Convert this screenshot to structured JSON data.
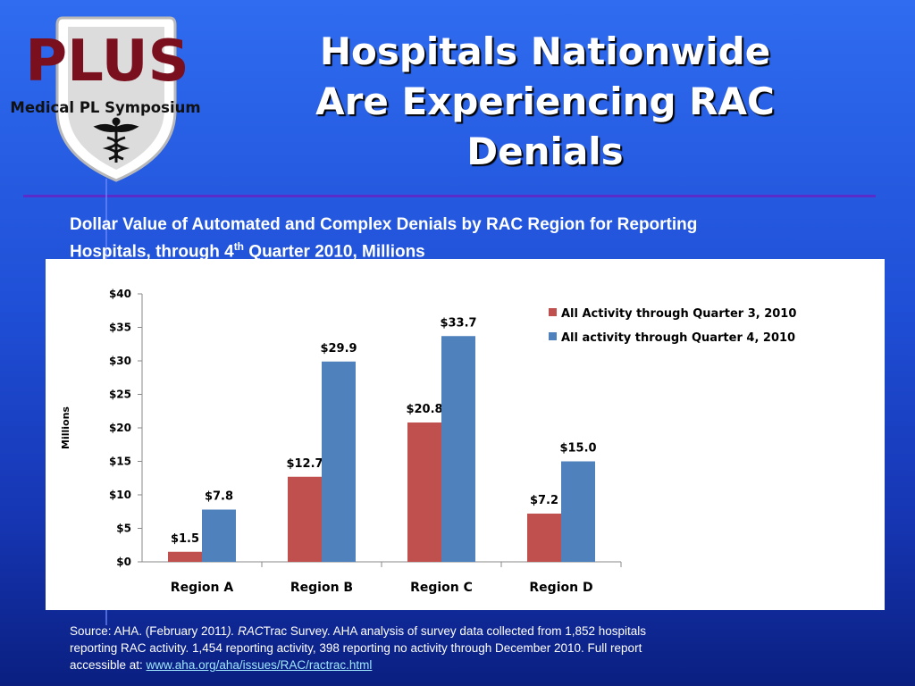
{
  "colors": {
    "q3": "#c0504d",
    "q4": "#4f81bd",
    "accent": "#7a0f1e"
  },
  "logo": {
    "main": "PLUS",
    "sub": "Medical PL Symposium",
    "icon": "caduceus-icon"
  },
  "slide": {
    "title_lines": [
      "Hospitals Nationwide",
      "Are Experiencing RAC",
      "Denials"
    ],
    "subtitle_line1": "Dollar Value of Automated and Complex Denials by RAC Region for Reporting",
    "subtitle_line2_a": "Hospitals, through 4",
    "subtitle_line2_sup": "th",
    "subtitle_line2_b": " Quarter 2010, Millions"
  },
  "source": {
    "line1_a": "Source: AHA. (February 2011",
    "line1_b": "). RAC",
    "line1_c": "Trac Survey. AHA analysis of survey data collected from 1,852 hospitals",
    "line2": "reporting RAC activity. 1,454 reporting activity, 398 reporting no activity through December 2010. Full report",
    "line3_a": "accessible at: ",
    "link": "www.aha.org/aha/issues/RAC/ractrac.html"
  },
  "chart_data": {
    "type": "bar",
    "categories": [
      "Region A",
      "Region B",
      "Region C",
      "Region D"
    ],
    "series": [
      {
        "name": "All Activity through Quarter 3, 2010",
        "values": [
          1.5,
          12.7,
          20.8,
          7.2
        ],
        "labels": [
          "$1.5",
          "$12.7",
          "$20.8",
          "$7.2"
        ]
      },
      {
        "name": "All activity through Quarter 4, 2010",
        "values": [
          7.8,
          29.9,
          33.7,
          15.0
        ],
        "labels": [
          "$7.8",
          "$29.9",
          "$33.7",
          "$15.0"
        ]
      }
    ],
    "ylabel": "Millions",
    "ylim": [
      0,
      40
    ],
    "yticks": [
      0,
      5,
      10,
      15,
      20,
      25,
      30,
      35,
      40
    ],
    "ytick_labels": [
      "$0",
      "$5",
      "$10",
      "$15",
      "$20",
      "$25",
      "$30",
      "$35",
      "$40"
    ],
    "legend_position": "top-right",
    "grid": false
  }
}
